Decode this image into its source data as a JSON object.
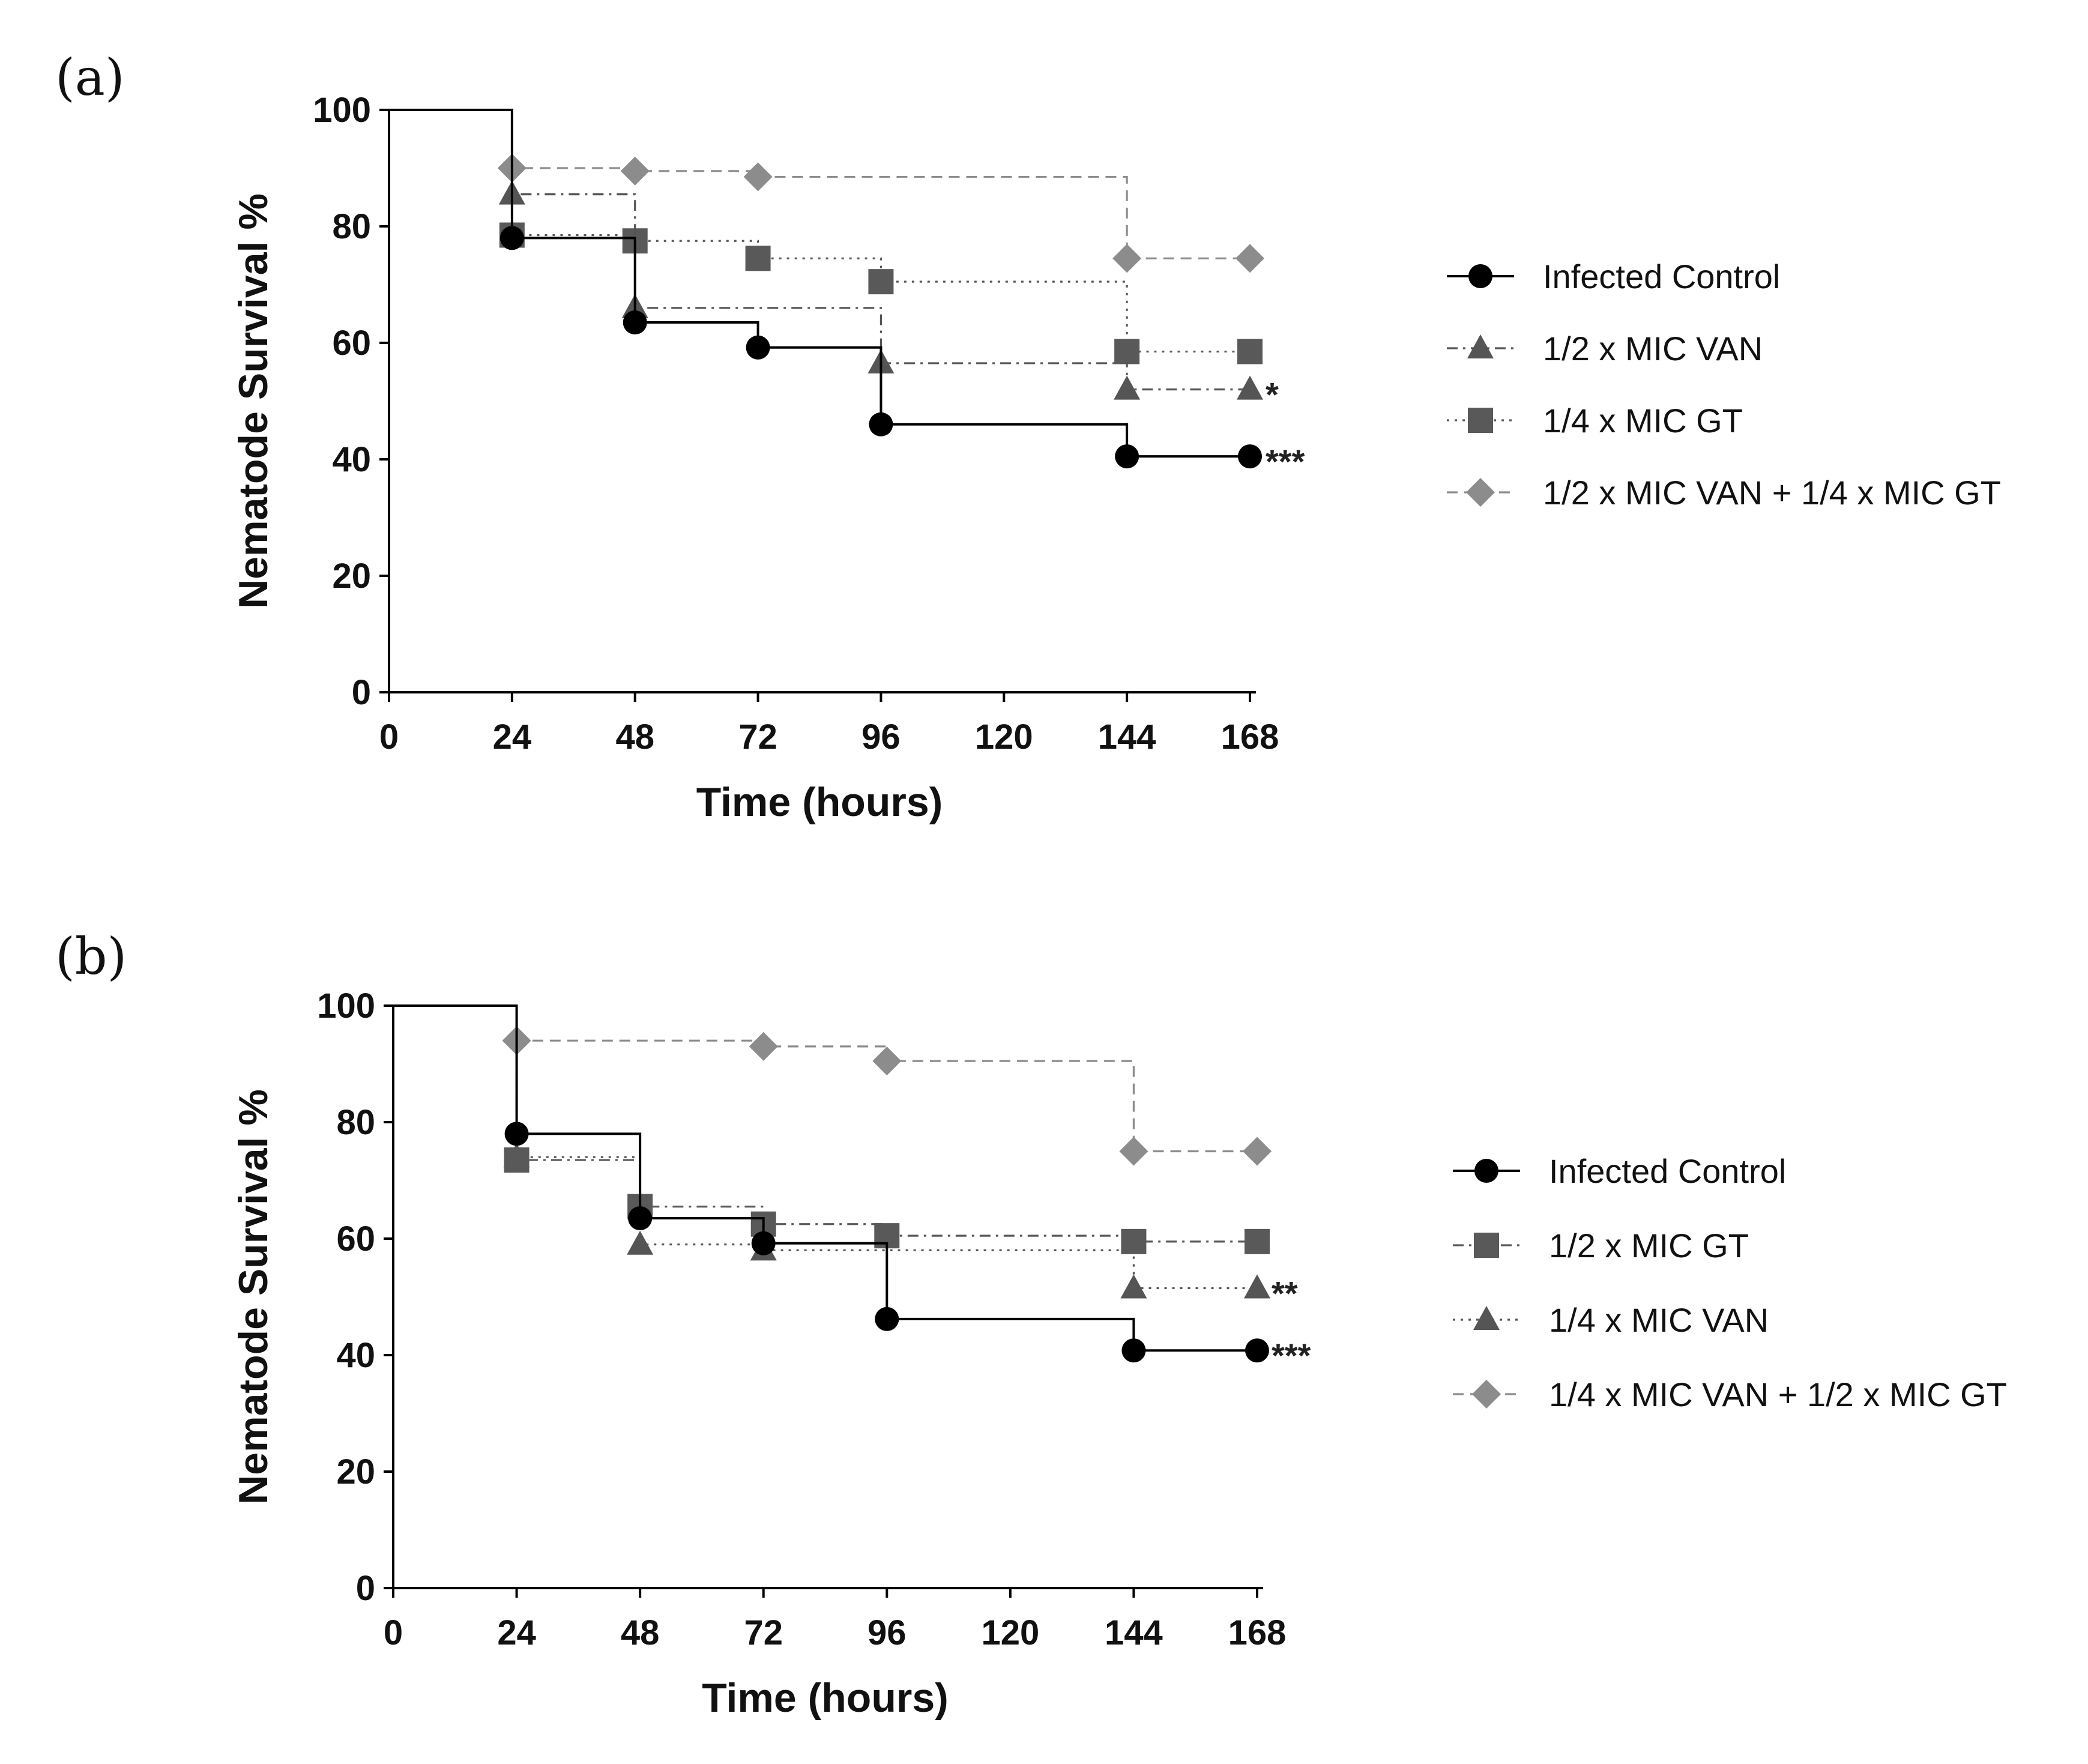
{
  "chart_data": [
    {
      "panel_label": "(a)",
      "type": "line",
      "step": true,
      "xlabel": "Time (hours)",
      "ylabel": "Nematode Survival %",
      "xlim": [
        0,
        168
      ],
      "ylim": [
        0,
        100
      ],
      "xticks": [
        0,
        24,
        48,
        72,
        96,
        120,
        144,
        168
      ],
      "yticks": [
        0,
        20,
        40,
        60,
        80,
        100
      ],
      "legend_position": "right",
      "series": [
        {
          "name": "Infected Control",
          "marker": "circle",
          "color": "#000000",
          "line_style": "solid",
          "x": [
            0,
            24,
            48,
            72,
            96,
            144,
            168
          ],
          "y": [
            100,
            78,
            63.5,
            59.2,
            46,
            40.5,
            40.5
          ],
          "significance": "***"
        },
        {
          "name": "1/2 x MIC VAN",
          "marker": "triangle",
          "color": "#555555",
          "line_style": "dashdot",
          "x": [
            0,
            24,
            48,
            96,
            144,
            168
          ],
          "y": [
            100,
            85.5,
            66,
            56.5,
            52,
            52
          ],
          "significance": "*"
        },
        {
          "name": "1/4 x MIC GT",
          "marker": "square",
          "color": "#595959",
          "line_style": "dotted",
          "x": [
            0,
            24,
            48,
            72,
            96,
            144,
            168
          ],
          "y": [
            100,
            78.5,
            77.5,
            74.5,
            70.5,
            58.5,
            58.5
          ],
          "significance": ""
        },
        {
          "name": "1/2 x MIC VAN + 1/4 x MIC GT",
          "marker": "diamond",
          "color": "#8c8c8c",
          "line_style": "dashed",
          "x": [
            0,
            24,
            48,
            72,
            144,
            168
          ],
          "y": [
            100,
            90,
            89.5,
            88.5,
            74.5,
            74.5
          ],
          "significance": ""
        }
      ]
    },
    {
      "panel_label": "(b)",
      "type": "line",
      "step": true,
      "xlabel": "Time (hours)",
      "ylabel": "Nematode Survival %",
      "xlim": [
        0,
        168
      ],
      "ylim": [
        0,
        100
      ],
      "xticks": [
        0,
        24,
        48,
        72,
        96,
        120,
        144,
        168
      ],
      "yticks": [
        0,
        20,
        40,
        60,
        80,
        100
      ],
      "legend_position": "right",
      "series": [
        {
          "name": "Infected Control",
          "marker": "circle",
          "color": "#000000",
          "line_style": "solid",
          "x": [
            0,
            24,
            48,
            72,
            96,
            144,
            168
          ],
          "y": [
            100,
            78,
            63.5,
            59.2,
            46.2,
            40.8,
            40.8
          ],
          "significance": "***"
        },
        {
          "name": "1/2 x MIC GT",
          "marker": "square",
          "color": "#595959",
          "line_style": "dashdot",
          "x": [
            0,
            24,
            48,
            72,
            96,
            144,
            168
          ],
          "y": [
            100,
            73.5,
            65.5,
            62.5,
            60.5,
            59.5,
            59.5
          ],
          "significance": ""
        },
        {
          "name": "1/4 x MIC VAN",
          "marker": "triangle",
          "color": "#555555",
          "line_style": "dotted",
          "x": [
            0,
            24,
            48,
            72,
            144,
            168
          ],
          "y": [
            100,
            74,
            59,
            58,
            51.5,
            51.5
          ],
          "significance": "**"
        },
        {
          "name": "1/4 x MIC VAN + 1/2 x MIC GT",
          "marker": "diamond",
          "color": "#8c8c8c",
          "line_style": "dashed",
          "x": [
            0,
            24,
            72,
            96,
            144,
            168
          ],
          "y": [
            100,
            94,
            93,
            90.5,
            75,
            75
          ],
          "significance": ""
        }
      ]
    }
  ]
}
